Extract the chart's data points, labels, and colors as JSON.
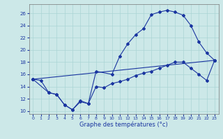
{
  "xlabel": "Graphe des températures (°c)",
  "bg_color": "#cce8e8",
  "line_color": "#1a35a0",
  "ylim": [
    9.5,
    27.5
  ],
  "xlim": [
    -0.5,
    23.5
  ],
  "yticks": [
    10,
    12,
    14,
    16,
    18,
    20,
    22,
    24,
    26
  ],
  "xticks": [
    0,
    1,
    2,
    3,
    4,
    5,
    6,
    7,
    8,
    9,
    10,
    11,
    12,
    13,
    14,
    15,
    16,
    17,
    18,
    19,
    20,
    21,
    22,
    23
  ],
  "line1_x": [
    0,
    1,
    2,
    3,
    4,
    5,
    6,
    7,
    8,
    9,
    10,
    11,
    12,
    13,
    14,
    15,
    16,
    17,
    18,
    19,
    20,
    21,
    22,
    23
  ],
  "line1_y": [
    15.2,
    15.0,
    13.0,
    12.7,
    11.0,
    10.2,
    11.5,
    11.2,
    14.0,
    13.8,
    14.5,
    14.8,
    15.2,
    15.8,
    16.2,
    16.5,
    17.0,
    17.5,
    18.0,
    18.0,
    17.0,
    16.0,
    15.0,
    18.3
  ],
  "line2_x": [
    0,
    2,
    3,
    4,
    5,
    6,
    7,
    8,
    10,
    11,
    12,
    13,
    14,
    15,
    16,
    17,
    18,
    19,
    20,
    21,
    22,
    23
  ],
  "line2_y": [
    15.2,
    13.0,
    12.7,
    11.0,
    10.2,
    11.7,
    11.2,
    16.5,
    16.0,
    19.0,
    21.0,
    22.5,
    23.5,
    25.8,
    26.2,
    26.5,
    26.2,
    25.7,
    24.0,
    21.3,
    19.5,
    18.3
  ],
  "line3_x": [
    0,
    23
  ],
  "line3_y": [
    15.2,
    18.3
  ]
}
